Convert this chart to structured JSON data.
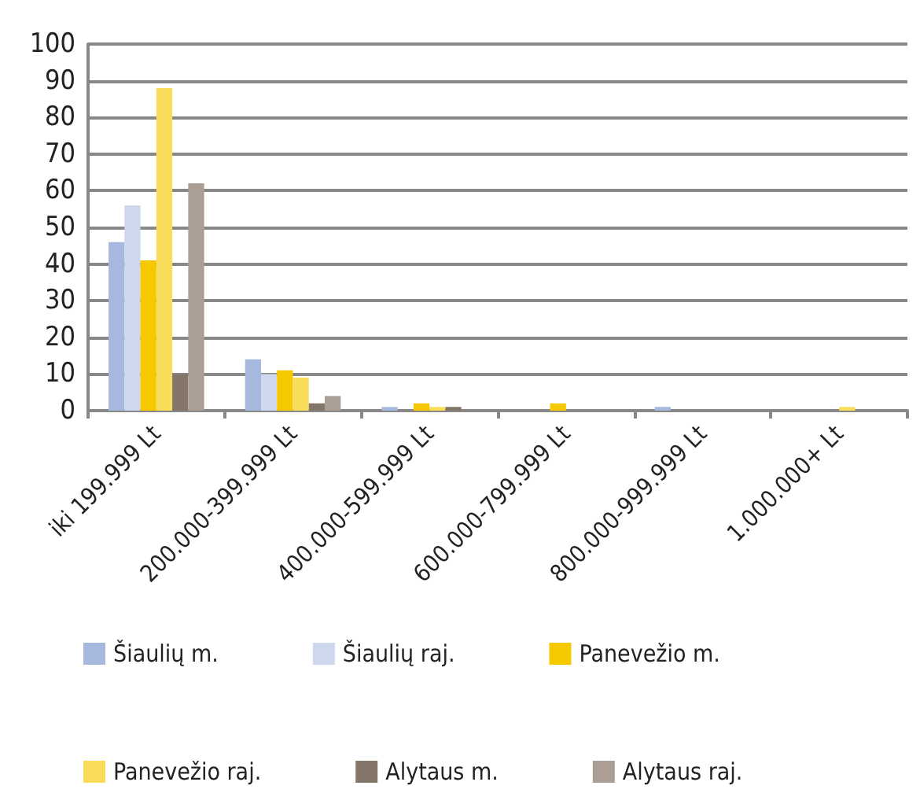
{
  "chart_data": {
    "type": "bar",
    "categories": [
      "iki 199.999 Lt",
      "200.000-399.999 Lt",
      "400.000-599.999 Lt",
      "600.000-799.999 Lt",
      "800.000-999.999 Lt",
      "1.000.000+ Lt"
    ],
    "series": [
      {
        "name": "Šiaulių m.",
        "color": "#a6b8de",
        "values": [
          46,
          14,
          1,
          0,
          1,
          0
        ]
      },
      {
        "name": "Šiaulių raj.",
        "color": "#cdd8ee",
        "values": [
          56,
          10,
          0,
          0,
          0,
          0
        ]
      },
      {
        "name": "Panevežio m.",
        "color": "#f5c800",
        "values": [
          41,
          11,
          2,
          2,
          0,
          0
        ]
      },
      {
        "name": "Panevežio raj.",
        "color": "#f8dc5a",
        "values": [
          88,
          9,
          1,
          0,
          0,
          1
        ]
      },
      {
        "name": "Alytaus m.",
        "color": "#85766a",
        "values": [
          10,
          2,
          1,
          0,
          0,
          0
        ]
      },
      {
        "name": "Alytaus raj.",
        "color": "#ab9f95",
        "values": [
          62,
          4,
          0,
          0,
          0,
          0
        ]
      }
    ],
    "ylim": [
      0,
      100
    ],
    "yticks": [
      0,
      10,
      20,
      30,
      40,
      50,
      60,
      70,
      80,
      90,
      100
    ],
    "grid": "y",
    "legend": "bottom"
  }
}
